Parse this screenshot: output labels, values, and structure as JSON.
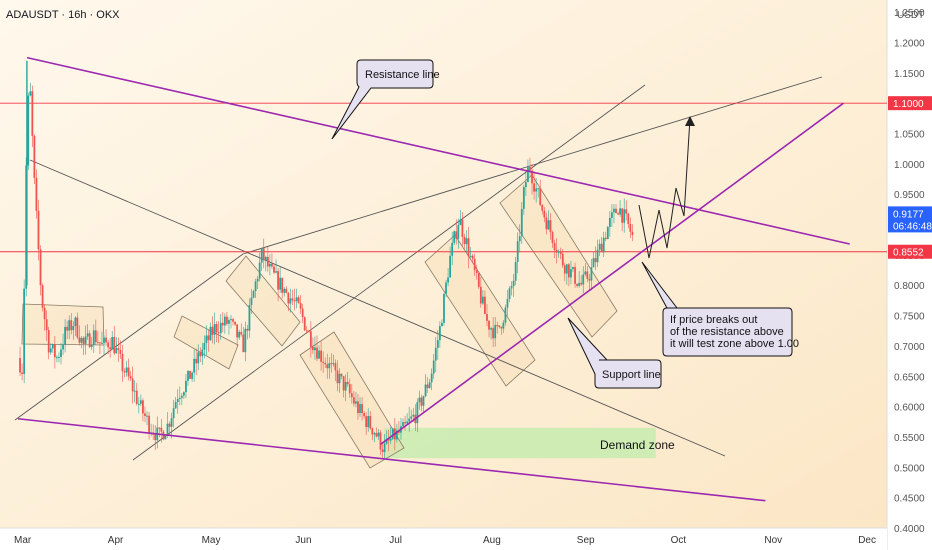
{
  "header": {
    "symbol": "ADAUSDT · 16h · OKX"
  },
  "axis": {
    "currency": "USDT"
  },
  "colors": {
    "up": "#26a69a",
    "down": "#ef5350",
    "purple": "#9c27b0",
    "gray_line": "#555555",
    "red_line": "#f23645",
    "blue_tag": "#2962ff",
    "demand": "#c8ecb0"
  },
  "price_tags": {
    "resistance_level": "1.1000",
    "current_price": "0.9177",
    "countdown": "06:46:48",
    "support_level": "0.8552"
  },
  "annotations": {
    "resistance_label": "Resistance line",
    "support_label": "Support line",
    "demand_label": "Demand zone",
    "note_line1": "If price breaks out",
    "note_line2": "of the resistance above",
    "note_line3": "it will test zone above 1.00"
  },
  "chart_data": {
    "type": "candlestick",
    "title": "ADAUSDT · 16h · OKX",
    "ylim": [
      0.4,
      1.27
    ],
    "y_ticks": [
      "1.2500",
      "1.2000",
      "1.1500",
      "1.1000",
      "1.0500",
      "1.0000",
      "0.9500",
      "0.9000",
      "0.8500",
      "0.8000",
      "0.7500",
      "0.7000",
      "0.6500",
      "0.6000",
      "0.5500",
      "0.5000",
      "0.4500",
      "0.4000"
    ],
    "x_ticks": [
      "Mar",
      "Apr",
      "May",
      "Jun",
      "Jul",
      "Aug",
      "Sep",
      "Oct",
      "Nov",
      "Dec"
    ],
    "grid": false,
    "horizontal_levels": [
      1.1,
      0.8552
    ],
    "close_path": [
      [
        0.0,
        0.68
      ],
      [
        0.05,
        0.66
      ],
      [
        0.09,
        1.02
      ],
      [
        0.12,
        1.15
      ],
      [
        0.18,
        0.95
      ],
      [
        0.25,
        0.78
      ],
      [
        0.33,
        0.7
      ],
      [
        0.42,
        0.68
      ],
      [
        0.5,
        0.72
      ],
      [
        0.6,
        0.74
      ],
      [
        0.7,
        0.7
      ],
      [
        0.8,
        0.72
      ],
      [
        0.9,
        0.7
      ],
      [
        1.0,
        0.71
      ],
      [
        1.1,
        0.67
      ],
      [
        1.2,
        0.64
      ],
      [
        1.3,
        0.6
      ],
      [
        1.4,
        0.57
      ],
      [
        1.5,
        0.55
      ],
      [
        1.6,
        0.57
      ],
      [
        1.7,
        0.62
      ],
      [
        1.8,
        0.64
      ],
      [
        1.95,
        0.69
      ],
      [
        2.1,
        0.73
      ],
      [
        2.25,
        0.74
      ],
      [
        2.4,
        0.7
      ],
      [
        2.5,
        0.78
      ],
      [
        2.6,
        0.85
      ],
      [
        2.7,
        0.82
      ],
      [
        2.8,
        0.8
      ],
      [
        2.9,
        0.78
      ],
      [
        3.0,
        0.76
      ],
      [
        3.1,
        0.72
      ],
      [
        3.2,
        0.69
      ],
      [
        3.35,
        0.66
      ],
      [
        3.5,
        0.63
      ],
      [
        3.65,
        0.59
      ],
      [
        3.8,
        0.56
      ],
      [
        3.9,
        0.53
      ],
      [
        4.0,
        0.55
      ],
      [
        4.1,
        0.56
      ],
      [
        4.25,
        0.59
      ],
      [
        4.4,
        0.65
      ],
      [
        4.5,
        0.73
      ],
      [
        4.6,
        0.84
      ],
      [
        4.7,
        0.91
      ],
      [
        4.8,
        0.86
      ],
      [
        4.9,
        0.8
      ],
      [
        5.0,
        0.74
      ],
      [
        5.1,
        0.72
      ],
      [
        5.2,
        0.76
      ],
      [
        5.3,
        0.82
      ],
      [
        5.4,
        0.96
      ],
      [
        5.45,
        1.0
      ],
      [
        5.5,
        0.97
      ],
      [
        5.6,
        0.92
      ],
      [
        5.7,
        0.88
      ],
      [
        5.8,
        0.84
      ],
      [
        5.9,
        0.82
      ],
      [
        6.0,
        0.8
      ],
      [
        6.1,
        0.82
      ],
      [
        6.2,
        0.86
      ],
      [
        6.3,
        0.9
      ],
      [
        6.4,
        0.93
      ],
      [
        6.5,
        0.9
      ],
      [
        6.55,
        0.88
      ]
    ],
    "lines": [
      {
        "name": "Resistance line",
        "color": "purple",
        "from": [
          "2024-03-04",
          1.175
        ],
        "to": [
          "2024-11-27",
          0.868
        ]
      },
      {
        "name": "Support line",
        "color": "purple",
        "from": [
          "2024-06-27",
          0.538
        ],
        "to": [
          "2024-11-25",
          1.1
        ]
      },
      {
        "name": "",
        "color": "purple",
        "from": [
          "2024-03-01",
          0.58
        ],
        "to": [
          "2024-10-31",
          0.445
        ]
      }
    ],
    "zones": [
      {
        "name": "Demand zone",
        "x": [
          "2024-06-28",
          "2024-09-25"
        ],
        "y": [
          0.515,
          0.565
        ]
      }
    ]
  }
}
